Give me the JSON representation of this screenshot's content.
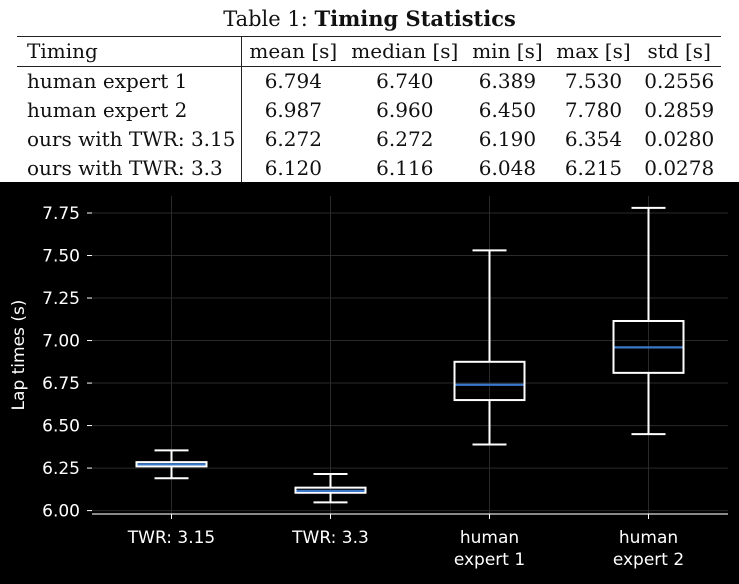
{
  "table": {
    "caption_prefix": "Table 1:",
    "caption_title": "Timing Statistics",
    "headers": [
      "Timing",
      "mean [s]",
      "median [s]",
      "min [s]",
      "max [s]",
      "std [s]"
    ],
    "rows": [
      [
        "human expert 1",
        "6.794",
        "6.740",
        "6.389",
        "7.530",
        "0.2556"
      ],
      [
        "human expert 2",
        "6.987",
        "6.960",
        "6.450",
        "7.780",
        "0.2859"
      ],
      [
        "ours with TWR: 3.15",
        "6.272",
        "6.272",
        "6.190",
        "6.354",
        "0.0280"
      ],
      [
        "ours with TWR: 3.3",
        "6.120",
        "6.116",
        "6.048",
        "6.215",
        "0.0278"
      ]
    ]
  },
  "chart_data": {
    "type": "box",
    "ylabel": "Lap times (s)",
    "ylim": [
      5.98,
      7.85
    ],
    "yticks": [
      "6.00",
      "6.25",
      "6.50",
      "6.75",
      "7.00",
      "7.25",
      "7.50",
      "7.75"
    ],
    "categories": [
      [
        "TWR: 3.15"
      ],
      [
        "TWR: 3.3"
      ],
      [
        "human",
        "expert 1"
      ],
      [
        "human",
        "expert 2"
      ]
    ],
    "boxes": [
      {
        "min": 6.19,
        "q1": 6.26,
        "median": 6.272,
        "q3": 6.285,
        "max": 6.354
      },
      {
        "min": 6.048,
        "q1": 6.105,
        "median": 6.116,
        "q3": 6.135,
        "max": 6.215
      },
      {
        "min": 6.389,
        "q1": 6.65,
        "median": 6.74,
        "q3": 6.875,
        "max": 7.53
      },
      {
        "min": 6.45,
        "q1": 6.81,
        "median": 6.96,
        "q3": 7.115,
        "max": 7.78
      }
    ],
    "grid": true,
    "colors": {
      "background": "#000000",
      "box": "#ffffff",
      "median": "#3a78c9",
      "grid": "#2a2a2a"
    }
  }
}
